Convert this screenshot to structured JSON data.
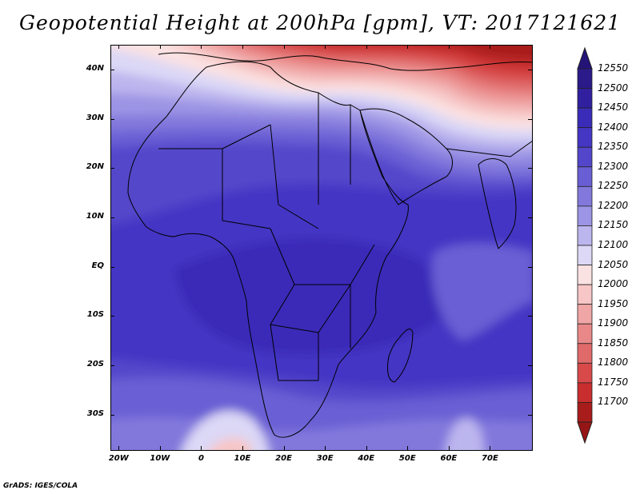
{
  "title": "Geopotential Height at 200hPa [gpm], VT: 2017121621",
  "credit": "GrADS: IGES/COLA",
  "map": {
    "lon_range": [
      -22,
      80
    ],
    "lat_range": [
      -37,
      45
    ],
    "lat_ticks": [
      {
        "value": 40,
        "label": "40N"
      },
      {
        "value": 30,
        "label": "30N"
      },
      {
        "value": 20,
        "label": "20N"
      },
      {
        "value": 10,
        "label": "10N"
      },
      {
        "value": 0,
        "label": "EQ"
      },
      {
        "value": -10,
        "label": "10S"
      },
      {
        "value": -20,
        "label": "20S"
      },
      {
        "value": -30,
        "label": "30S"
      }
    ],
    "lon_ticks": [
      {
        "value": -20,
        "label": "20W"
      },
      {
        "value": -10,
        "label": "10W"
      },
      {
        "value": 0,
        "label": "0"
      },
      {
        "value": 10,
        "label": "10E"
      },
      {
        "value": 20,
        "label": "20E"
      },
      {
        "value": 30,
        "label": "30E"
      },
      {
        "value": 40,
        "label": "40E"
      },
      {
        "value": 50,
        "label": "50E"
      },
      {
        "value": 60,
        "label": "60E"
      },
      {
        "value": 70,
        "label": "70E"
      }
    ]
  },
  "colorbar": {
    "levels": [
      {
        "value": "12550",
        "color": "#2a1a8a"
      },
      {
        "value": "12500",
        "color": "#3020a0"
      },
      {
        "value": "12450",
        "color": "#3a2cb8"
      },
      {
        "value": "12400",
        "color": "#4536c4"
      },
      {
        "value": "12350",
        "color": "#5446ca"
      },
      {
        "value": "12300",
        "color": "#6a5ed4"
      },
      {
        "value": "12250",
        "color": "#8278dc"
      },
      {
        "value": "12200",
        "color": "#9c94e4"
      },
      {
        "value": "12150",
        "color": "#bcb6ee"
      },
      {
        "value": "12100",
        "color": "#dcd8f6"
      },
      {
        "value": "12050",
        "color": "#fbe2e2"
      },
      {
        "value": "12000",
        "color": "#f7c6c6"
      },
      {
        "value": "11950",
        "color": "#f0a6a6"
      },
      {
        "value": "11900",
        "color": "#e98888"
      },
      {
        "value": "11850",
        "color": "#e06a6a"
      },
      {
        "value": "11800",
        "color": "#d84a4a"
      },
      {
        "value": "11750",
        "color": "#c82e2e"
      },
      {
        "value": "11700",
        "color": "#a81c1c"
      }
    ],
    "top_triangle_color": "#241478",
    "bottom_triangle_color": "#961616"
  }
}
